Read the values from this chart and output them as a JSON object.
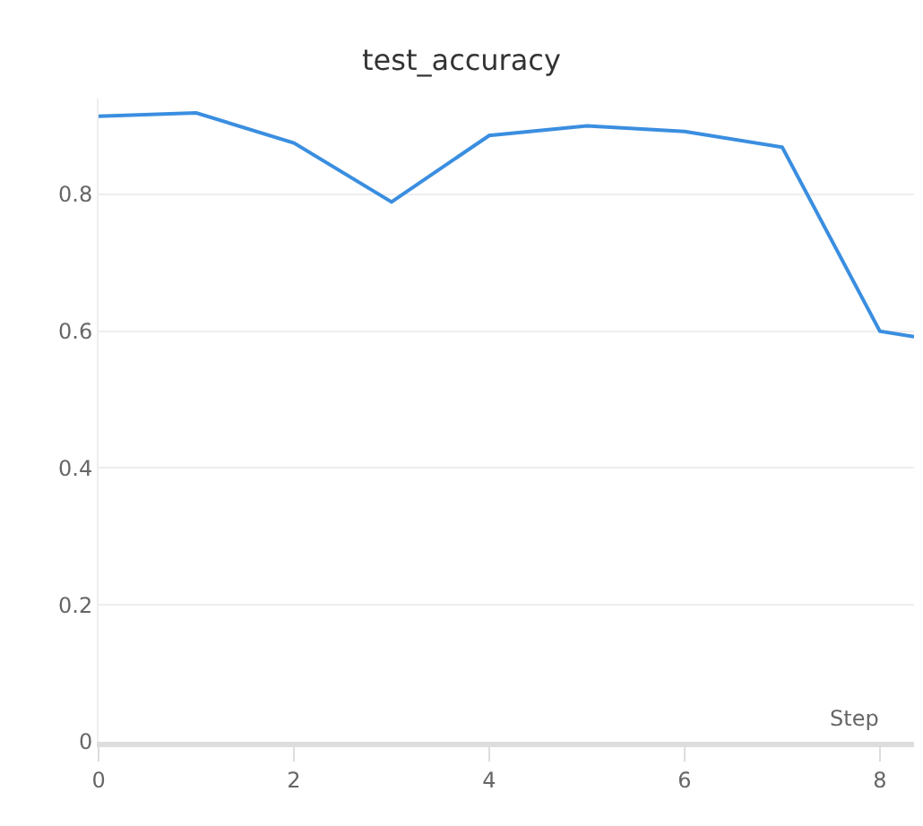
{
  "chart_data": {
    "type": "line",
    "title": "test_accuracy",
    "xlabel": "Step",
    "x": [
      0,
      1,
      2,
      3,
      4,
      5,
      6,
      7,
      8,
      8.35
    ],
    "series": [
      {
        "color": "#3a8ee0",
        "values": [
          0.914,
          0.919,
          0.875,
          0.789,
          0.886,
          0.9,
          0.892,
          0.869,
          0.6,
          0.592
        ]
      }
    ],
    "xlim": [
      0,
      8.35
    ],
    "xticks": [
      0,
      2,
      4,
      6,
      8
    ],
    "ylim": [
      0,
      0.94
    ],
    "yticks": [
      0,
      0.2,
      0.4,
      0.6,
      0.8
    ],
    "grid": "y",
    "marker": "none",
    "line_style": "solid"
  }
}
